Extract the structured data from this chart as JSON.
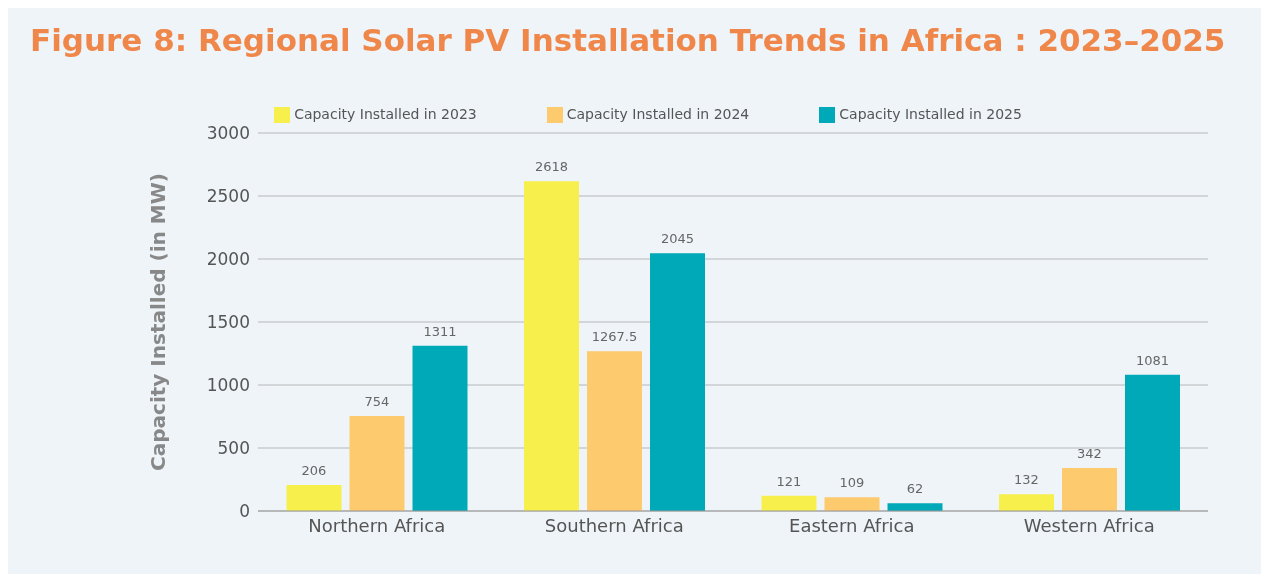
{
  "chart_data": {
    "type": "bar",
    "title": "Figure 8: Regional Solar PV Installation Trends in Africa : 2023–2025",
    "ylabel": "Capacity Installed (in MW)",
    "categories": [
      "Northern Africa",
      "Southern Africa",
      "Eastern Africa",
      "Western Africa"
    ],
    "series": [
      {
        "name": "Capacity Installed in 2023",
        "color": "#f7ef4b",
        "values": [
          206,
          2618,
          121,
          132
        ]
      },
      {
        "name": "Capacity Installed in 2024",
        "color": "#fdca6e",
        "values": [
          754,
          1267.5,
          109,
          342
        ]
      },
      {
        "name": "Capacity Installed in 2025",
        "color": "#00a9b7",
        "values": [
          1311,
          2045,
          62,
          1081
        ]
      }
    ],
    "ylim": [
      0,
      3000
    ],
    "yticks": [
      0,
      500,
      1000,
      1500,
      2000,
      2500,
      3000
    ],
    "grid": "y",
    "legend": "top",
    "data_labels": true
  }
}
